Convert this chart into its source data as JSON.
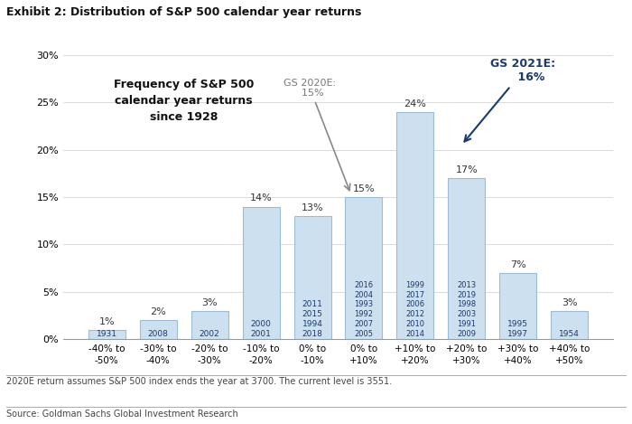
{
  "title": "Exhibit 2: Distribution of S&P 500 calendar year returns",
  "categories": [
    "-40% to\n-50%",
    "-30% to\n-40%",
    "-20% to\n-30%",
    "-10% to\n-20%",
    "0% to\n-10%",
    "0% to\n+10%",
    "+10% to\n+20%",
    "+20% to\n+30%",
    "+30% to\n+40%",
    "+40% to\n+50%"
  ],
  "values": [
    1,
    2,
    3,
    14,
    13,
    15,
    24,
    17,
    7,
    3
  ],
  "bar_color": "#cce0f0",
  "bar_edge_color": "#9abcd8",
  "years_in_bars": [
    "1931",
    "2008",
    "2002",
    "2000\n2001",
    "2011\n2015\n1994\n2018",
    "2016\n2004\n1993\n1992\n2007\n2005",
    "1999\n2017\n2006\n2012\n2010\n2014",
    "2013\n2019\n1998\n2003\n1991\n2009",
    "1995\n1997",
    "1954"
  ],
  "pct_labels": [
    "1%",
    "2%",
    "3%",
    "14%",
    "13%",
    "15%",
    "24%",
    "17%",
    "7%",
    "3%"
  ],
  "year_text_color": "#1a3a6e",
  "pct_text_color": "#333333",
  "ylim": [
    0,
    30
  ],
  "yticks": [
    0,
    5,
    10,
    15,
    20,
    25,
    30
  ],
  "ytick_labels": [
    "0%",
    "5%",
    "10%",
    "15%",
    "20%",
    "25%",
    "30%"
  ],
  "inset_text": "Frequency of S&P 500\ncalendar year returns\nsince 1928",
  "gs2020_label": "GS 2020E:\n  15%",
  "gs2021_label": "GS 2021E:\n    16%",
  "gs2020_bar_idx": 5,
  "gs2021_bar_idx": 7,
  "footnote1": "2020E return assumes S&P 500 index ends the year at 3700. The current level is 3551.",
  "footnote2": "Source: Goldman Sachs Global Investment Research",
  "background_color": "#ffffff"
}
